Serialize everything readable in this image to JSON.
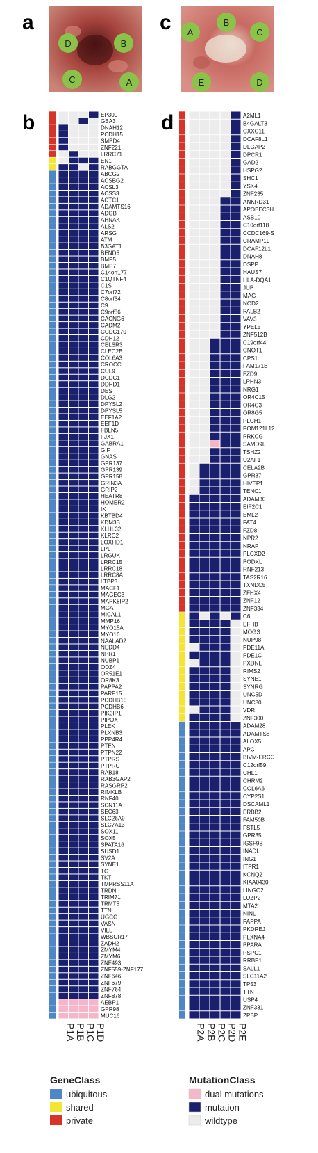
{
  "panels": {
    "a": "a",
    "b": "b",
    "c": "c",
    "d": "d"
  },
  "photos": {
    "left": {
      "regions": [
        "D",
        "B",
        "C",
        "A"
      ]
    },
    "right": {
      "regions": [
        "A",
        "B",
        "C",
        "E",
        "D"
      ]
    }
  },
  "colors": {
    "ubiquitous": "#4f86c6",
    "shared": "#f5e433",
    "private": "#d93226",
    "dual": "#f4b6c8",
    "mutation": "#1a1f6e",
    "wildtype": "#ececec",
    "photo_tissue": "#b85a52",
    "circle": "#8bc34a"
  },
  "heatmap_b": {
    "samples": [
      "P1A",
      "P1B",
      "P1C",
      "P1D"
    ],
    "genes": [
      "EP300",
      "GBA3",
      "DNAH12",
      "PCDH15",
      "SMPD4",
      "ZNF221",
      "LRRC71",
      "EN1",
      "RABGGTA",
      "ABCG2",
      "ACSBG2",
      "ACSL3",
      "ACSS3",
      "ACTC1",
      "ADAMTS16",
      "ADGB",
      "AHNAK",
      "ALS2",
      "ARSG",
      "ATM",
      "B3GAT1",
      "BEND5",
      "BMP5",
      "BMP7",
      "C14orf177",
      "C1QTNF4",
      "C1S",
      "C7orf72",
      "C8orf34",
      "C9",
      "C9orf86",
      "CACNG6",
      "CADM2",
      "CCDC170",
      "CDH12",
      "CELSR3",
      "CLEC2B",
      "COL6A3",
      "CROCC",
      "CUL9",
      "DCDC1",
      "DDHD1",
      "DES",
      "DLG2",
      "DPYSL2",
      "DPYSL5",
      "EEF1A2",
      "EEF1D",
      "FBLN5",
      "FJX1",
      "GABRA1",
      "GIF",
      "GNAS",
      "GPR137",
      "GPR139",
      "GPR158",
      "GRIN3A",
      "GRIP2",
      "HEATR8",
      "HOMER2",
      "IK",
      "KBTBD4",
      "KDM3B",
      "KLHL32",
      "KLRC2",
      "LOXHD1",
      "LPL",
      "LRGUK",
      "LRRC15",
      "LRRC18",
      "LRRC8A",
      "LTBP3",
      "MACF1",
      "MAGEC3",
      "MAPK8IP2",
      "MGA",
      "MICAL1",
      "MMP16",
      "MYO15A",
      "MYO16",
      "NAALAD2",
      "NEDD4",
      "NPR1",
      "NUBP1",
      "ODZ4",
      "OR51E1",
      "OR8K3",
      "PAPPA2",
      "PARP15",
      "PCDHB15",
      "PCDHB6",
      "PIK3IP1",
      "PIPOX",
      "PLEK",
      "PLXNB3",
      "PPP4R4",
      "PTEN",
      "PTPN22",
      "PTPRS",
      "PTPRU",
      "RAB18",
      "RAB3GAP2",
      "RASGRP2",
      "RIMKLB",
      "RNF40",
      "SCN11A",
      "SEC63",
      "SLC26A9",
      "SLC7A13",
      "SOX11",
      "SOX5",
      "SPATA16",
      "SUSD1",
      "SV2A",
      "SYNE1",
      "TG",
      "TKT",
      "TMPRSS11A",
      "TRDN",
      "TRIM71",
      "TRMT5",
      "TTN",
      "UGCG",
      "VASN",
      "VILL",
      "WBSCR17",
      "ZADH2",
      "ZMYM4",
      "ZMYM6",
      "ZNF493",
      "ZNF559-ZNF177",
      "ZNF646",
      "ZNF679",
      "ZNF764",
      "ZNF878",
      "AEBP1",
      "GPR98",
      "MUC16"
    ],
    "gene_class": [
      "private",
      "private",
      "private",
      "private",
      "private",
      "private",
      "private",
      "shared",
      "shared",
      "ubiquitous",
      "ubiquitous",
      "ubiquitous",
      "ubiquitous",
      "ubiquitous",
      "ubiquitous",
      "ubiquitous",
      "ubiquitous",
      "ubiquitous",
      "ubiquitous",
      "ubiquitous",
      "ubiquitous",
      "ubiquitous",
      "ubiquitous",
      "ubiquitous",
      "ubiquitous",
      "ubiquitous",
      "ubiquitous",
      "ubiquitous",
      "ubiquitous",
      "ubiquitous",
      "ubiquitous",
      "ubiquitous",
      "ubiquitous",
      "ubiquitous",
      "ubiquitous",
      "ubiquitous",
      "ubiquitous",
      "ubiquitous",
      "ubiquitous",
      "ubiquitous",
      "ubiquitous",
      "ubiquitous",
      "ubiquitous",
      "ubiquitous",
      "ubiquitous",
      "ubiquitous",
      "ubiquitous",
      "ubiquitous",
      "ubiquitous",
      "ubiquitous",
      "ubiquitous",
      "ubiquitous",
      "ubiquitous",
      "ubiquitous",
      "ubiquitous",
      "ubiquitous",
      "ubiquitous",
      "ubiquitous",
      "ubiquitous",
      "ubiquitous",
      "ubiquitous",
      "ubiquitous",
      "ubiquitous",
      "ubiquitous",
      "ubiquitous",
      "ubiquitous",
      "ubiquitous",
      "ubiquitous",
      "ubiquitous",
      "ubiquitous",
      "ubiquitous",
      "ubiquitous",
      "ubiquitous",
      "ubiquitous",
      "ubiquitous",
      "ubiquitous",
      "ubiquitous",
      "ubiquitous",
      "ubiquitous",
      "ubiquitous",
      "ubiquitous",
      "ubiquitous",
      "ubiquitous",
      "ubiquitous",
      "ubiquitous",
      "ubiquitous",
      "ubiquitous",
      "ubiquitous",
      "ubiquitous",
      "ubiquitous",
      "ubiquitous",
      "ubiquitous",
      "ubiquitous",
      "ubiquitous",
      "ubiquitous",
      "ubiquitous",
      "ubiquitous",
      "ubiquitous",
      "ubiquitous",
      "ubiquitous",
      "ubiquitous",
      "ubiquitous",
      "ubiquitous",
      "ubiquitous",
      "ubiquitous",
      "ubiquitous",
      "ubiquitous",
      "ubiquitous",
      "ubiquitous",
      "ubiquitous",
      "ubiquitous",
      "ubiquitous",
      "ubiquitous",
      "ubiquitous",
      "ubiquitous",
      "ubiquitous",
      "ubiquitous",
      "ubiquitous",
      "ubiquitous",
      "ubiquitous",
      "ubiquitous",
      "ubiquitous",
      "ubiquitous",
      "ubiquitous",
      "ubiquitous",
      "ubiquitous",
      "ubiquitous",
      "ubiquitous",
      "ubiquitous",
      "ubiquitous",
      "ubiquitous",
      "ubiquitous",
      "ubiquitous",
      "ubiquitous",
      "ubiquitous",
      "ubiquitous",
      "ubiquitous",
      "ubiquitous"
    ],
    "special_rows": {
      "EP300": [
        "W",
        "W",
        "W",
        "M"
      ],
      "GBA3": [
        "W",
        "W",
        "M",
        "W"
      ],
      "DNAH12": [
        "M",
        "W",
        "W",
        "W"
      ],
      "PCDH15": [
        "M",
        "W",
        "W",
        "W"
      ],
      "SMPD4": [
        "M",
        "W",
        "W",
        "W"
      ],
      "ZNF221": [
        "M",
        "W",
        "W",
        "W"
      ],
      "LRRC71": [
        "W",
        "M",
        "W",
        "W"
      ],
      "EN1": [
        "W",
        "M",
        "M",
        "M"
      ],
      "RABGGTA": [
        "M",
        "M",
        "W",
        "M"
      ],
      "AEBP1": [
        "D",
        "D",
        "D",
        "D"
      ],
      "GPR98": [
        "D",
        "D",
        "D",
        "D"
      ],
      "MUC16": [
        "D",
        "D",
        "D",
        "D"
      ]
    },
    "default_row": [
      "M",
      "M",
      "M",
      "M"
    ]
  },
  "heatmap_d": {
    "samples": [
      "P2A",
      "P2B",
      "P2C",
      "P2D",
      "P2E"
    ],
    "genes": [
      "A2ML1",
      "B4GALT3",
      "CXXC11",
      "DCAF8L1",
      "DLGAP2",
      "DPCR1",
      "GAD2",
      "HSPG2",
      "SHC1",
      "YSK4",
      "ZNF235",
      "ANKRD31",
      "APOBEC3H",
      "ASB10",
      "C10orf118",
      "CCDC169-S",
      "CRAMP1L",
      "DCAF12L1",
      "DNAH8",
      "DSPP",
      "HAUS7",
      "HLA-DQA1",
      "JUP",
      "MAG",
      "NOD2",
      "PALB2",
      "VAV3",
      "YPEL5",
      "ZNF512B",
      "C19orf44",
      "CNOT1",
      "CPS1",
      "FAM171B",
      "FZD9",
      "LPHN3",
      "NRG1",
      "OR4C15",
      "OR4C3",
      "OR8G5",
      "PLCH1",
      "POM121L12",
      "PRKCG",
      "SAMD9L",
      "TSHZ2",
      "U2AF1",
      "CELA2B",
      "GPR37",
      "HIVEP1",
      "TENC1",
      "ADAM30",
      "EIF2C1",
      "EML2",
      "FAT4",
      "FZD8",
      "NPR2",
      "NRAP",
      "PLCXD2",
      "PODXL",
      "RNF213",
      "TAS2R16",
      "TXNDC5",
      "ZFHX4",
      "ZNF12",
      "ZNF334",
      "C6",
      "EFHB",
      "MOGS",
      "NUP98",
      "PDE11A",
      "PDE1C",
      "PXDNL",
      "RIMS2",
      "SYNE1",
      "SYNRG",
      "UNC5D",
      "UNC80",
      "VDR",
      "ZNF300",
      "ADAM28",
      "ADAMTS8",
      "ALOX5",
      "APC",
      "BIVM-ERCC",
      "C12orf59",
      "CHL1",
      "CHRM2",
      "COL6A6",
      "CYP2S1",
      "DSCAML1",
      "ERBB2",
      "FAM50B",
      "FSTL5",
      "GPR35",
      "IGSF9B",
      "INADL",
      "ING1",
      "ITPR1",
      "KCNQ2",
      "KIAA0430",
      "LINGO2",
      "LUZP2",
      "MTA2",
      "NINL",
      "PAPPA",
      "PKDREJ",
      "PLXNA4",
      "PPARA",
      "PSPC1",
      "RRBP1",
      "SALL1",
      "SLC11A2",
      "TP53",
      "TTN",
      "USP4",
      "ZNF331",
      "ZPBP"
    ],
    "class_counts": {
      "private": 64,
      "shared": 14,
      "ubiquitous": 38
    },
    "patterns": {
      "first_11": [
        "W",
        "W",
        "W",
        "W",
        "M"
      ],
      "next_18": [
        "W",
        "W",
        "W",
        "M",
        "M"
      ],
      "next_16": [
        "W",
        "W",
        "M",
        "M",
        "M"
      ],
      "next_4": [
        "W",
        "M",
        "M",
        "M",
        "M"
      ],
      "next_15": [
        "M",
        "M",
        "M",
        "M",
        "M"
      ],
      "shared_rows": {
        "C6": [
          "M",
          "W",
          "M",
          "W",
          "M"
        ],
        "EFHB": [
          "M",
          "M",
          "M",
          "M",
          "W"
        ],
        "MOGS": [
          "M",
          "M",
          "M",
          "M",
          "W"
        ],
        "NUP98": [
          "M",
          "M",
          "M",
          "M",
          "W"
        ],
        "PDE11A": [
          "W",
          "M",
          "M",
          "M",
          "W"
        ],
        "PDE1C": [
          "M",
          "M",
          "M",
          "M",
          "W"
        ],
        "PXDNL": [
          "W",
          "M",
          "M",
          "M",
          "W"
        ],
        "RIMS2": [
          "M",
          "M",
          "M",
          "M",
          "W"
        ],
        "SYNE1": [
          "M",
          "M",
          "M",
          "M",
          "W"
        ],
        "SYNRG": [
          "M",
          "M",
          "M",
          "M",
          "W"
        ],
        "UNC5D": [
          "M",
          "M",
          "M",
          "M",
          "W"
        ],
        "UNC80": [
          "M",
          "M",
          "M",
          "M",
          "W"
        ],
        "VDR": [
          "W",
          "M",
          "M",
          "M",
          "W"
        ],
        "ZNF300": [
          "M",
          "M",
          "M",
          "M",
          "W"
        ]
      },
      "dual_cells": {
        "SAMD9L": 2
      }
    }
  },
  "legend": {
    "gene_class_title": "GeneClass",
    "gene_class_items": [
      "ubiquitous",
      "shared",
      "private"
    ],
    "mutation_class_title": "MutationClass",
    "mutation_class_items": [
      "dual mutations",
      "mutation",
      "wildtype"
    ]
  }
}
